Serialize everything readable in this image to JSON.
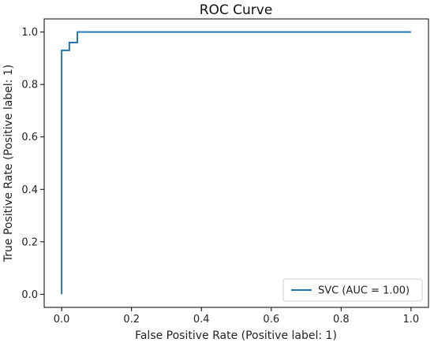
{
  "chart_data": {
    "type": "line",
    "title": "ROC Curve",
    "xlabel": "False Positive Rate (Positive label: 1)",
    "ylabel": "True Positive Rate (Positive label: 1)",
    "xlim": [
      -0.05,
      1.05
    ],
    "ylim": [
      -0.05,
      1.05
    ],
    "xticks": [
      0.0,
      0.2,
      0.4,
      0.6,
      0.8,
      1.0
    ],
    "yticks": [
      0.0,
      0.2,
      0.4,
      0.6,
      0.8,
      1.0
    ],
    "xtick_labels": [
      "0.0",
      "0.2",
      "0.4",
      "0.6",
      "0.8",
      "1.0"
    ],
    "ytick_labels": [
      "0.0",
      "0.2",
      "0.4",
      "0.6",
      "0.8",
      "1.0"
    ],
    "grid": false,
    "legend_position": "lower-right",
    "series": [
      {
        "name": "SVC (AUC = 1.00)",
        "color": "#1f77b4",
        "x": [
          0.0,
          0.0,
          0.0,
          0.022,
          0.022,
          0.045,
          0.045,
          1.0
        ],
        "y": [
          0.0,
          0.93,
          0.93,
          0.93,
          0.96,
          0.96,
          1.0,
          1.0
        ]
      }
    ]
  }
}
